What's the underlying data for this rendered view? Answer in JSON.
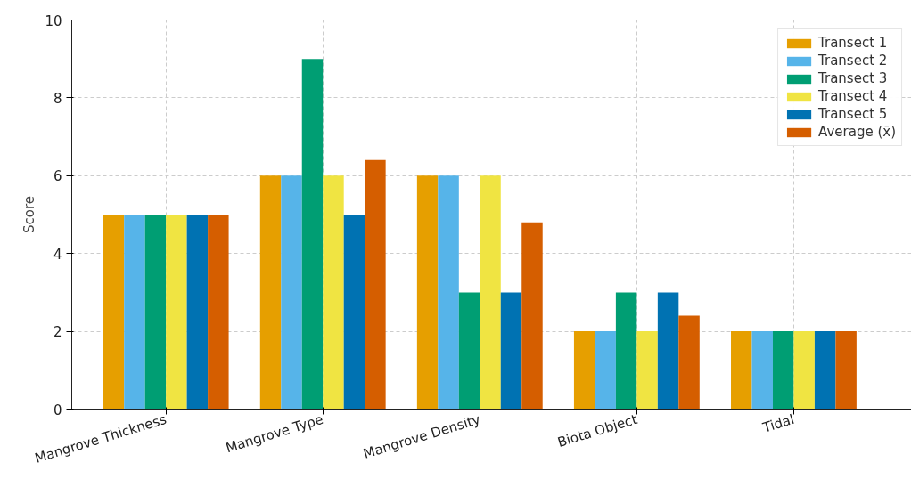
{
  "chart_data": {
    "type": "bar",
    "ylabel": "Score",
    "categories": [
      "Mangrove Thickness",
      "Mangrove Type",
      "Mangrove Density",
      "Biota Object",
      "Tidal"
    ],
    "series": [
      {
        "name": "Transect 1",
        "color": "#e69f00",
        "values": [
          5,
          6,
          6,
          2,
          2
        ]
      },
      {
        "name": "Transect 2",
        "color": "#56b4e9",
        "values": [
          5,
          6,
          6,
          2,
          2
        ]
      },
      {
        "name": "Transect 3",
        "color": "#009e73",
        "values": [
          5,
          9,
          3,
          3,
          2
        ]
      },
      {
        "name": "Transect 4",
        "color": "#f0e442",
        "values": [
          5,
          6,
          6,
          2,
          2
        ]
      },
      {
        "name": "Transect 5",
        "color": "#0072b2",
        "values": [
          5,
          5,
          3,
          3,
          2
        ]
      },
      {
        "name": "Average (x̄)",
        "color": "#d55e00",
        "values": [
          5,
          6.4,
          4.8,
          2.4,
          2
        ]
      }
    ],
    "ylim": [
      0,
      10
    ],
    "yticks": [
      0,
      2,
      4,
      6,
      8,
      10
    ],
    "grid": true,
    "legend": "top right"
  }
}
